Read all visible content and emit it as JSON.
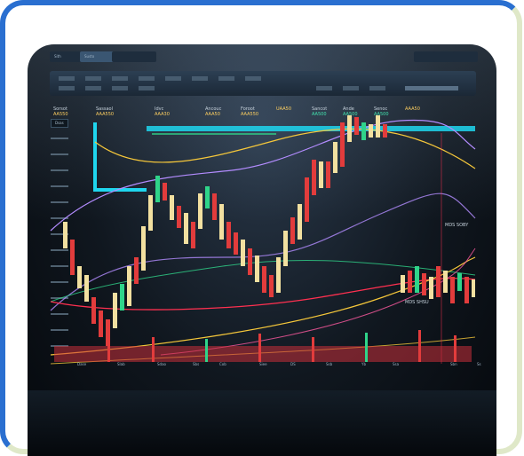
{
  "topbar": {
    "tabs": [
      "Sith",
      "Susto"
    ]
  },
  "info_bar": {
    "items": [
      {
        "label": "Sorsot",
        "value": "AA550"
      },
      {
        "label": "Sassaol",
        "value": "AAA550"
      },
      {
        "label": "Idvc",
        "value": "AAA30"
      },
      {
        "label": "Ancouc",
        "value": "AAA50"
      },
      {
        "label": "Foroot",
        "value": "AAA550"
      },
      {
        "label": "",
        "value": "UAA50"
      },
      {
        "label": "Sancot",
        "value": "AA500",
        "accent": true
      },
      {
        "label": "Ande",
        "value": "AA500",
        "accent": true
      },
      {
        "label": "Senoc",
        "value": "AA500",
        "accent": true
      },
      {
        "label": "",
        "value": "AAA50"
      }
    ]
  },
  "panel": {
    "label": "Dsas"
  },
  "annotations": {
    "right_label": "MDS SOBY",
    "mid_label": "MDS SHSU"
  },
  "time_axis": {
    "ticks": [
      "Dase",
      "Slab",
      "Sdao",
      "Sbs",
      "Cob",
      "Siee",
      "DS",
      "Ssb",
      "Yb",
      "Ssa",
      "Sbn",
      "Ss"
    ]
  },
  "colors": {
    "bull": "#f2e0a0",
    "bear": "#e23c3c",
    "green": "#2fd48a",
    "cyan": "#1fd6ee",
    "yellow": "#f5c73a",
    "purple": "#b38cff",
    "red_line": "#ff3050",
    "volume": "#c8303a"
  }
}
